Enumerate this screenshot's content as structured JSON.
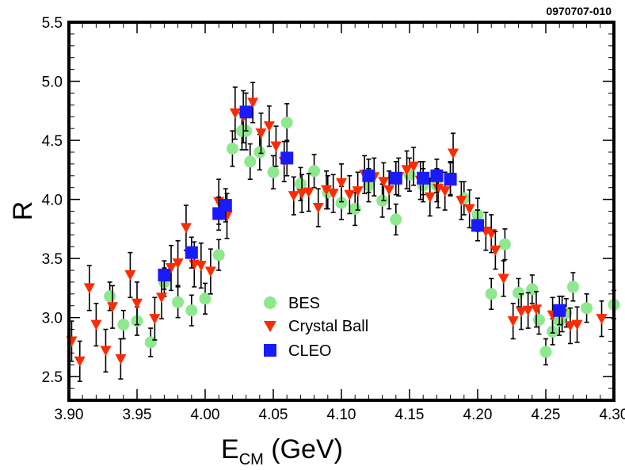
{
  "figure_code": "0970707-010",
  "colors": {
    "bes": "#8ee88e",
    "crystal_ball": "#ff2a00",
    "cleo": "#1a1aff",
    "axis": "#000000",
    "error_bar": "#000000"
  },
  "chart_data": {
    "type": "scatter",
    "xlabel_main": "E",
    "xlabel_sub": "CM",
    "xlabel_unit": " (GeV)",
    "ylabel": "R",
    "xlim": [
      3.9,
      4.3
    ],
    "ylim": [
      2.3,
      5.5
    ],
    "x_ticks": [
      "3.90",
      "3.95",
      "4.00",
      "4.05",
      "4.10",
      "4.15",
      "4.20",
      "4.25",
      "4.30"
    ],
    "y_ticks": [
      "2.5",
      "3.0",
      "3.5",
      "4.0",
      "4.5",
      "5.0",
      "5.5"
    ],
    "legend_position": "center-left",
    "series": [
      {
        "name": "BES",
        "marker": "circle",
        "color_key": "bes",
        "points": [
          {
            "x": 3.93,
            "y": 3.18,
            "err": 0.12
          },
          {
            "x": 3.94,
            "y": 2.94,
            "err": 0.12
          },
          {
            "x": 3.95,
            "y": 2.97,
            "err": 0.12
          },
          {
            "x": 3.96,
            "y": 2.79,
            "err": 0.12
          },
          {
            "x": 3.97,
            "y": 3.3,
            "err": 0.12
          },
          {
            "x": 3.98,
            "y": 3.13,
            "err": 0.13
          },
          {
            "x": 3.99,
            "y": 3.06,
            "err": 0.13
          },
          {
            "x": 4.0,
            "y": 3.16,
            "err": 0.13
          },
          {
            "x": 4.01,
            "y": 3.53,
            "err": 0.13
          },
          {
            "x": 4.02,
            "y": 4.43,
            "err": 0.15
          },
          {
            "x": 4.027,
            "y": 4.58,
            "err": 0.16
          },
          {
            "x": 4.03,
            "y": 4.58,
            "err": 0.16
          },
          {
            "x": 4.033,
            "y": 4.32,
            "err": 0.15
          },
          {
            "x": 4.04,
            "y": 4.4,
            "err": 0.15
          },
          {
            "x": 4.05,
            "y": 4.23,
            "err": 0.14
          },
          {
            "x": 4.06,
            "y": 4.65,
            "err": 0.16
          },
          {
            "x": 4.07,
            "y": 4.13,
            "err": 0.14
          },
          {
            "x": 4.08,
            "y": 4.24,
            "err": 0.14
          },
          {
            "x": 4.09,
            "y": 4.06,
            "err": 0.14
          },
          {
            "x": 4.1,
            "y": 3.97,
            "err": 0.14
          },
          {
            "x": 4.11,
            "y": 3.92,
            "err": 0.14
          },
          {
            "x": 4.12,
            "y": 4.12,
            "err": 0.14
          },
          {
            "x": 4.13,
            "y": 3.99,
            "err": 0.14
          },
          {
            "x": 4.14,
            "y": 3.83,
            "err": 0.13
          },
          {
            "x": 4.15,
            "y": 4.21,
            "err": 0.14
          },
          {
            "x": 4.16,
            "y": 4.12,
            "err": 0.14
          },
          {
            "x": 4.17,
            "y": 4.12,
            "err": 0.14
          },
          {
            "x": 4.18,
            "y": 4.18,
            "err": 0.14
          },
          {
            "x": 4.19,
            "y": 4.01,
            "err": 0.14
          },
          {
            "x": 4.2,
            "y": 3.87,
            "err": 0.14
          },
          {
            "x": 4.21,
            "y": 3.2,
            "err": 0.13
          },
          {
            "x": 4.22,
            "y": 3.62,
            "err": 0.13
          },
          {
            "x": 4.23,
            "y": 3.21,
            "err": 0.12
          },
          {
            "x": 4.24,
            "y": 3.24,
            "err": 0.12
          },
          {
            "x": 4.245,
            "y": 2.98,
            "err": 0.12
          },
          {
            "x": 4.25,
            "y": 2.71,
            "err": 0.11
          },
          {
            "x": 4.255,
            "y": 2.88,
            "err": 0.11
          },
          {
            "x": 4.26,
            "y": 2.97,
            "err": 0.12
          },
          {
            "x": 4.265,
            "y": 3.04,
            "err": 0.12
          },
          {
            "x": 4.27,
            "y": 3.26,
            "err": 0.12
          },
          {
            "x": 4.28,
            "y": 3.08,
            "err": 0.12
          },
          {
            "x": 4.3,
            "y": 3.11,
            "err": 0.12
          }
        ]
      },
      {
        "name": "Crystal Ball",
        "marker": "triangle-down",
        "color_key": "crystal_ball",
        "points": [
          {
            "x": 3.902,
            "y": 2.8,
            "err": 0.17
          },
          {
            "x": 3.908,
            "y": 2.63,
            "err": 0.17
          },
          {
            "x": 3.915,
            "y": 3.25,
            "err": 0.19
          },
          {
            "x": 3.92,
            "y": 2.94,
            "err": 0.18
          },
          {
            "x": 3.927,
            "y": 2.72,
            "err": 0.18
          },
          {
            "x": 3.932,
            "y": 3.09,
            "err": 0.18
          },
          {
            "x": 3.938,
            "y": 2.65,
            "err": 0.17
          },
          {
            "x": 3.945,
            "y": 3.36,
            "err": 0.19
          },
          {
            "x": 3.95,
            "y": 3.12,
            "err": 0.18
          },
          {
            "x": 3.963,
            "y": 2.99,
            "err": 0.18
          },
          {
            "x": 3.968,
            "y": 3.17,
            "err": 0.18
          },
          {
            "x": 3.975,
            "y": 3.42,
            "err": 0.19
          },
          {
            "x": 3.98,
            "y": 3.46,
            "err": 0.19
          },
          {
            "x": 3.986,
            "y": 3.76,
            "err": 0.19
          },
          {
            "x": 3.992,
            "y": 3.45,
            "err": 0.19
          },
          {
            "x": 3.997,
            "y": 3.44,
            "err": 0.19
          },
          {
            "x": 4.004,
            "y": 3.39,
            "err": 0.19
          },
          {
            "x": 4.01,
            "y": 3.98,
            "err": 0.19
          },
          {
            "x": 4.016,
            "y": 3.86,
            "err": 0.19
          },
          {
            "x": 4.022,
            "y": 4.73,
            "err": 0.22
          },
          {
            "x": 4.028,
            "y": 4.7,
            "err": 0.22
          },
          {
            "x": 4.035,
            "y": 4.82,
            "err": 0.17
          },
          {
            "x": 4.041,
            "y": 4.56,
            "err": 0.17
          },
          {
            "x": 4.047,
            "y": 4.62,
            "err": 0.17
          },
          {
            "x": 4.052,
            "y": 4.45,
            "err": 0.17
          },
          {
            "x": 4.058,
            "y": 4.32,
            "err": 0.17
          },
          {
            "x": 4.065,
            "y": 4.03,
            "err": 0.16
          },
          {
            "x": 4.071,
            "y": 4.05,
            "err": 0.16
          },
          {
            "x": 4.076,
            "y": 4.06,
            "err": 0.16
          },
          {
            "x": 4.083,
            "y": 3.93,
            "err": 0.16
          },
          {
            "x": 4.089,
            "y": 4.08,
            "err": 0.16
          },
          {
            "x": 4.094,
            "y": 4.05,
            "err": 0.16
          },
          {
            "x": 4.1,
            "y": 4.14,
            "err": 0.16
          },
          {
            "x": 4.106,
            "y": 4.04,
            "err": 0.16
          },
          {
            "x": 4.112,
            "y": 4.07,
            "err": 0.16
          },
          {
            "x": 4.117,
            "y": 4.21,
            "err": 0.16
          },
          {
            "x": 4.124,
            "y": 4.19,
            "err": 0.16
          },
          {
            "x": 4.131,
            "y": 4.15,
            "err": 0.16
          },
          {
            "x": 4.135,
            "y": 4.08,
            "err": 0.16
          },
          {
            "x": 4.142,
            "y": 4.19,
            "err": 0.16
          },
          {
            "x": 4.148,
            "y": 4.25,
            "err": 0.16
          },
          {
            "x": 4.153,
            "y": 4.28,
            "err": 0.16
          },
          {
            "x": 4.158,
            "y": 4.16,
            "err": 0.16
          },
          {
            "x": 4.165,
            "y": 4.02,
            "err": 0.16
          },
          {
            "x": 4.171,
            "y": 4.09,
            "err": 0.16
          },
          {
            "x": 4.176,
            "y": 4.07,
            "err": 0.16
          },
          {
            "x": 4.182,
            "y": 4.39,
            "err": 0.17
          },
          {
            "x": 4.188,
            "y": 3.99,
            "err": 0.16
          },
          {
            "x": 4.194,
            "y": 3.92,
            "err": 0.16
          },
          {
            "x": 4.206,
            "y": 3.73,
            "err": 0.16
          },
          {
            "x": 4.21,
            "y": 3.71,
            "err": 0.16
          },
          {
            "x": 4.213,
            "y": 3.57,
            "err": 0.16
          },
          {
            "x": 4.219,
            "y": 3.33,
            "err": 0.15
          },
          {
            "x": 4.226,
            "y": 2.97,
            "err": 0.15
          },
          {
            "x": 4.232,
            "y": 3.05,
            "err": 0.15
          },
          {
            "x": 4.237,
            "y": 3.06,
            "err": 0.15
          },
          {
            "x": 4.243,
            "y": 3.07,
            "err": 0.15
          },
          {
            "x": 4.255,
            "y": 3.02,
            "err": 0.15
          },
          {
            "x": 4.262,
            "y": 3.03,
            "err": 0.15
          },
          {
            "x": 4.268,
            "y": 2.93,
            "err": 0.15
          },
          {
            "x": 4.273,
            "y": 2.94,
            "err": 0.15
          },
          {
            "x": 4.291,
            "y": 2.99,
            "err": 0.15
          }
        ]
      },
      {
        "name": "CLEO",
        "marker": "square",
        "color_key": "cleo",
        "points": [
          {
            "x": 3.97,
            "y": 3.36,
            "err": 0.12
          },
          {
            "x": 3.99,
            "y": 3.55,
            "err": 0.13
          },
          {
            "x": 4.01,
            "y": 3.88,
            "err": 0.14
          },
          {
            "x": 4.015,
            "y": 3.95,
            "err": 0.14
          },
          {
            "x": 4.03,
            "y": 4.74,
            "err": 0.16
          },
          {
            "x": 4.06,
            "y": 4.35,
            "err": 0.15
          },
          {
            "x": 4.12,
            "y": 4.2,
            "err": 0.14
          },
          {
            "x": 4.14,
            "y": 4.18,
            "err": 0.14
          },
          {
            "x": 4.16,
            "y": 4.18,
            "err": 0.14
          },
          {
            "x": 4.17,
            "y": 4.2,
            "err": 0.14
          },
          {
            "x": 4.18,
            "y": 4.17,
            "err": 0.14
          },
          {
            "x": 4.2,
            "y": 3.78,
            "err": 0.13
          },
          {
            "x": 4.26,
            "y": 3.06,
            "err": 0.12
          }
        ]
      }
    ]
  }
}
